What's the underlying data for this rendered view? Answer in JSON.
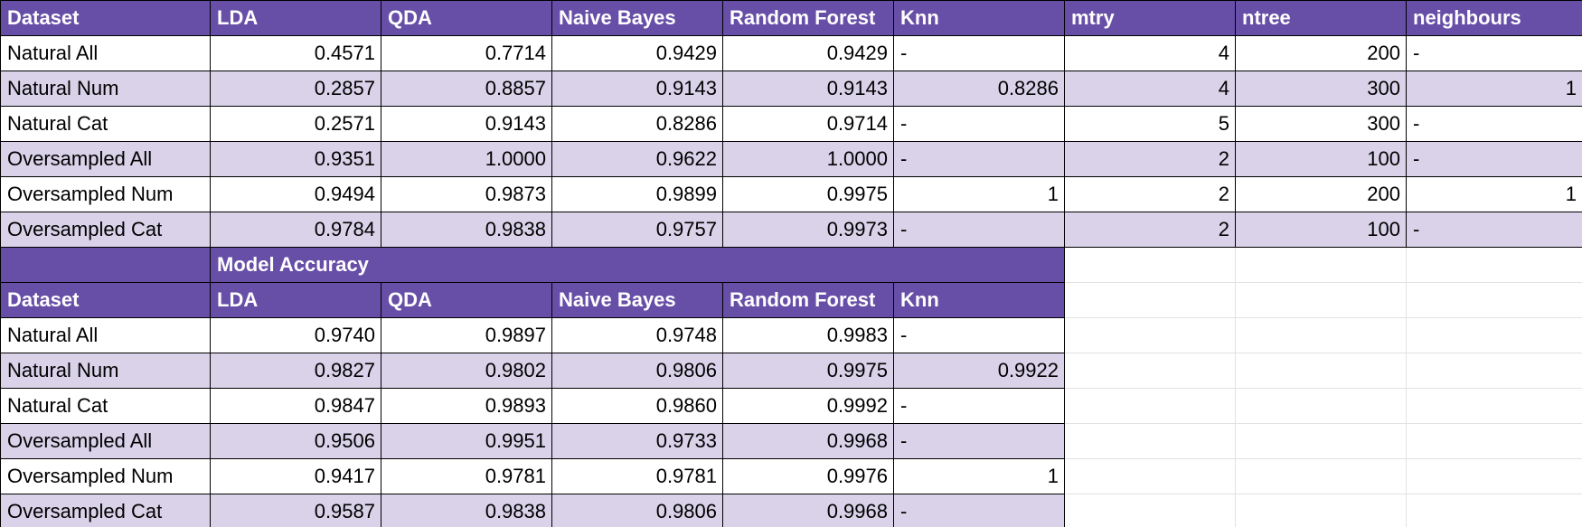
{
  "sheet": {
    "top_table": {
      "headers": [
        "Dataset",
        "LDA",
        "QDA",
        "Naive Bayes",
        "Random Forest",
        "Knn",
        "mtry",
        "ntree",
        "neighbours"
      ],
      "rows": [
        [
          "Natural All",
          "0.4571",
          "0.7714",
          "0.9429",
          "0.9429",
          "-",
          "4",
          "200",
          "-"
        ],
        [
          "Natural Num",
          "0.2857",
          "0.8857",
          "0.9143",
          "0.9143",
          "0.8286",
          "4",
          "300",
          "1"
        ],
        [
          "Natural Cat",
          "0.2571",
          "0.9143",
          "0.8286",
          "0.9714",
          "-",
          "5",
          "300",
          "-"
        ],
        [
          "Oversampled All",
          "0.9351",
          "1.0000",
          "0.9622",
          "1.0000",
          "-",
          "2",
          "100",
          "-"
        ],
        [
          "Oversampled Num",
          "0.9494",
          "0.9873",
          "0.9899",
          "0.9975",
          "1",
          "2",
          "200",
          "1"
        ],
        [
          "Oversampled Cat",
          "0.9784",
          "0.9838",
          "0.9757",
          "0.9973",
          "-",
          "2",
          "100",
          "-"
        ]
      ]
    },
    "bottom_table": {
      "section_title": "Model Accuracy",
      "headers": [
        "Dataset",
        "LDA",
        "QDA",
        "Naive Bayes",
        "Random Forest",
        "Knn"
      ],
      "rows": [
        [
          "Natural All",
          "0.9740",
          "0.9897",
          "0.9748",
          "0.9983",
          "-"
        ],
        [
          "Natural Num",
          "0.9827",
          "0.9802",
          "0.9806",
          "0.9975",
          "0.9922"
        ],
        [
          "Natural Cat",
          "0.9847",
          "0.9893",
          "0.9860",
          "0.9992",
          "-"
        ],
        [
          "Oversampled All",
          "0.9506",
          "0.9951",
          "0.9733",
          "0.9968",
          "-"
        ],
        [
          "Oversampled Num",
          "0.9417",
          "0.9781",
          "0.9781",
          "0.9976",
          "1"
        ],
        [
          "Oversampled Cat",
          "0.9587",
          "0.9838",
          "0.9806",
          "0.9968",
          "-"
        ]
      ]
    },
    "colors": {
      "header_bg": "#674ea7",
      "header_text": "#ffffff",
      "band_light": "#ffffff",
      "band_dark": "#d9d2e9",
      "grid_line": "#d9d9d9"
    }
  }
}
